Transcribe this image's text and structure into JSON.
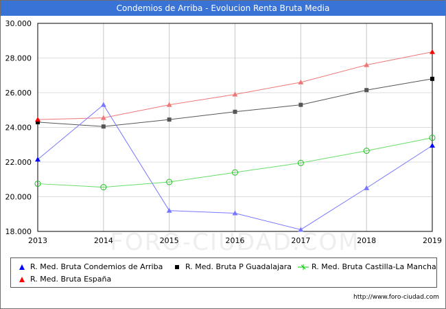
{
  "header": {
    "title": "Condemios de Arriba - Evolucion Renta Bruta Media"
  },
  "watermark": "FORO-CIUDAD.COM",
  "footer": {
    "url": "http://www.foro-ciudad.com"
  },
  "chart_data": {
    "type": "line",
    "title": "Condemios de Arriba - Evolucion Renta Bruta Media",
    "xlabel": "",
    "ylabel": "",
    "x": [
      "2013",
      "2014",
      "2015",
      "2016",
      "2017",
      "2018",
      "2019"
    ],
    "ylim": [
      18000,
      30000
    ],
    "yticks": [
      18000,
      20000,
      22000,
      24000,
      26000,
      28000,
      30000
    ],
    "ytick_labels": [
      "18.000",
      "20.000",
      "22.000",
      "24.000",
      "26.000",
      "28.000",
      "30.000"
    ],
    "grid": true,
    "legend_position": "bottom",
    "series": [
      {
        "name": "R. Med. Bruta Condemios de Arriba",
        "color": "#0000ff",
        "marker": "triangle",
        "values": [
          22150,
          25300,
          19200,
          19050,
          18100,
          20500,
          22950
        ]
      },
      {
        "name": "R. Med. Bruta P Guadalajara",
        "color": "#000000",
        "marker": "square",
        "values": [
          24300,
          24050,
          24450,
          24900,
          25300,
          26150,
          26800
        ]
      },
      {
        "name": "R. Med. Bruta Castilla-La Mancha",
        "color": "#00cc00",
        "marker": "circle",
        "values": [
          20750,
          20550,
          20850,
          21400,
          21950,
          22650,
          23400
        ]
      },
      {
        "name": "R. Med. Bruta España",
        "color": "#ff0000",
        "marker": "triangle",
        "values": [
          24450,
          24550,
          25300,
          25900,
          26600,
          27600,
          28350
        ]
      }
    ]
  }
}
